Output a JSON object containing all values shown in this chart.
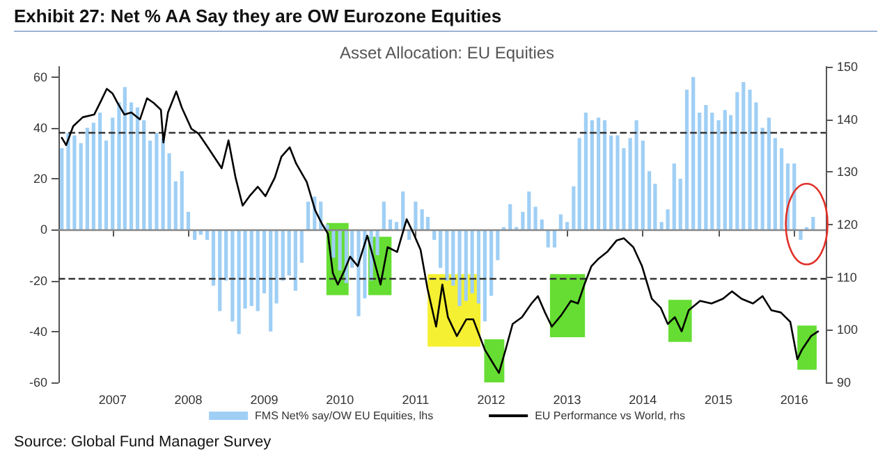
{
  "chart_data": {
    "type": "bar",
    "title": "Exhibit 27: Net % AA Say they are OW Eurozone Equities",
    "subtitle": "Asset Allocation: EU Equities",
    "annotations": [
      "Source: Global Fund Manager Survey"
    ],
    "series": [
      {
        "name": "FMS Net% say/OW EU Equities, lhs",
        "color": "#9fcff5",
        "x": [
          "2006-05",
          "2006-06",
          "2006-07",
          "2006-08",
          "2006-09",
          "2006-10",
          "2006-11",
          "2006-12",
          "2007-01",
          "2007-02",
          "2007-03",
          "2007-04",
          "2007-05",
          "2007-06",
          "2007-07",
          "2007-08",
          "2007-09",
          "2007-10",
          "2007-11",
          "2007-12",
          "2008-01",
          "2008-02",
          "2008-03",
          "2008-04",
          "2008-05",
          "2008-06",
          "2008-07",
          "2008-08",
          "2008-09",
          "2008-10",
          "2008-11",
          "2008-12",
          "2009-01",
          "2009-02",
          "2009-03",
          "2009-04",
          "2009-05",
          "2009-06",
          "2009-07",
          "2009-08",
          "2009-09",
          "2009-10",
          "2009-11",
          "2009-12",
          "2010-01",
          "2010-02",
          "2010-03",
          "2010-04",
          "2010-05",
          "2010-06",
          "2010-07",
          "2010-08",
          "2010-09",
          "2010-10",
          "2010-11",
          "2010-12",
          "2011-01",
          "2011-02",
          "2011-03",
          "2011-04",
          "2011-05",
          "2011-06",
          "2011-07",
          "2011-08",
          "2011-09",
          "2011-10",
          "2011-11",
          "2011-12",
          "2012-01",
          "2012-02",
          "2012-03",
          "2012-04",
          "2012-05",
          "2012-06",
          "2012-07",
          "2012-08",
          "2012-09",
          "2012-10",
          "2012-11",
          "2012-12",
          "2013-01",
          "2013-02",
          "2013-03",
          "2013-04",
          "2013-05",
          "2013-06",
          "2013-07",
          "2013-08",
          "2013-09",
          "2013-10",
          "2013-11",
          "2013-12",
          "2014-01",
          "2014-02",
          "2014-03",
          "2014-04",
          "2014-05",
          "2014-06",
          "2014-07",
          "2014-08",
          "2014-09",
          "2014-10",
          "2014-11",
          "2014-12",
          "2015-01",
          "2015-02",
          "2015-03",
          "2015-04",
          "2015-05",
          "2015-06",
          "2015-07",
          "2015-08",
          "2015-09",
          "2015-10",
          "2015-11",
          "2015-12",
          "2016-01",
          "2016-02",
          "2016-03",
          "2016-04"
        ],
        "values": [
          32,
          38,
          37,
          34,
          40,
          42,
          46,
          35,
          44,
          50,
          56,
          50,
          48,
          43,
          35,
          38,
          36,
          30,
          19,
          23,
          7,
          -4,
          -2,
          -4,
          -22,
          -32,
          -20,
          -36,
          -41,
          -31,
          -30,
          -32,
          -25,
          -40,
          -29,
          -20,
          -18,
          -24,
          -13,
          11,
          13,
          11,
          2,
          -11,
          -16,
          -21,
          -15,
          -34,
          -27,
          -20,
          -10,
          11,
          4,
          3,
          15,
          -4,
          11,
          8,
          5,
          -4,
          -15,
          -20,
          -22,
          -30,
          -28,
          -25,
          -29,
          -36,
          -26,
          -12,
          1,
          10,
          1,
          7,
          15,
          9,
          4,
          -7,
          -7,
          6,
          3,
          17,
          36,
          46,
          43,
          44,
          43,
          37,
          37,
          32,
          36,
          43,
          35,
          23,
          18,
          3,
          8,
          26,
          20,
          55,
          60,
          46,
          49,
          46,
          43,
          47,
          45,
          54,
          58,
          55,
          50,
          40,
          44,
          36,
          32,
          26,
          26,
          -4,
          1,
          5
        ]
      },
      {
        "name": "EU Performance vs World, rhs",
        "type": "line",
        "axis": "y2",
        "color": "#000000",
        "marker": "none",
        "line_style": "solid",
        "x": [
          "2006-05-01",
          "2006-05-22",
          "2006-06-25",
          "2006-08-10",
          "2006-10-04",
          "2006-11-06",
          "2006-12-04",
          "2007-01-01",
          "2007-01-25",
          "2007-02-27",
          "2007-04-01",
          "2007-05-13",
          "2007-06-16",
          "2007-07-19",
          "2007-08-22",
          "2007-09-03",
          "2007-09-25",
          "2007-11-04",
          "2007-12-01",
          "2008-01-16",
          "2008-02-19",
          "2008-04-04",
          "2008-06-10",
          "2008-07-13",
          "2008-08-16",
          "2008-09-19",
          "2008-10-22",
          "2008-12-01",
          "2009-01-07",
          "2009-02-21",
          "2009-03-25",
          "2009-05-04",
          "2009-06-04",
          "2009-07-25",
          "2009-09-04",
          "2009-10-07",
          "2009-11-04",
          "2009-11-28",
          "2009-12-22",
          "2010-01-22",
          "2010-02-19",
          "2010-03-28",
          "2010-05-13",
          "2010-06-16",
          "2010-07-16",
          "2010-08-19",
          "2010-10-04",
          "2010-11-19",
          "2010-12-22",
          "2011-01-25",
          "2011-02-28",
          "2011-04-10",
          "2011-05-10",
          "2011-06-06",
          "2011-07-19",
          "2011-09-03",
          "2011-10-06",
          "2011-10-28",
          "2011-12-01",
          "2012-01-04",
          "2012-02-07",
          "2012-03-10",
          "2012-04-13",
          "2012-05-28",
          "2012-07-13",
          "2012-08-13",
          "2012-09-16",
          "2012-10-19",
          "2012-12-04",
          "2013-01-19",
          "2013-02-22",
          "2013-03-25",
          "2013-04-28",
          "2013-06-01",
          "2013-07-13",
          "2013-08-28",
          "2013-10-01",
          "2013-11-16",
          "2013-12-28",
          "2014-02-13",
          "2014-03-28",
          "2014-05-01",
          "2014-06-04",
          "2014-07-07",
          "2014-08-10",
          "2014-10-04",
          "2014-11-28",
          "2015-01-22",
          "2015-03-07",
          "2015-04-22",
          "2015-06-16",
          "2015-08-01",
          "2015-09-13",
          "2015-10-28",
          "2015-12-13",
          "2016-01-16",
          "2016-02-07",
          "2016-03-22",
          "2016-04-25"
        ],
        "values": [
          136.5,
          135.1,
          138.7,
          140.4,
          140.9,
          143.5,
          145.8,
          144.9,
          143.1,
          140.9,
          141.3,
          140,
          144,
          143.1,
          141.8,
          135.6,
          141.3,
          145.3,
          142.2,
          138.2,
          137.3,
          134.7,
          130.7,
          136,
          128.9,
          123.6,
          125.4,
          127.2,
          125.4,
          128.9,
          132.9,
          134.7,
          131.6,
          128.1,
          122.7,
          120.1,
          118.3,
          110.8,
          108.6,
          111.2,
          113.9,
          112.1,
          117.9,
          113,
          108.6,
          115.7,
          114.8,
          121,
          118.3,
          115.2,
          107.7,
          100.6,
          108.6,
          102.4,
          98.8,
          102,
          102,
          99.7,
          96.2,
          94,
          91.8,
          96.2,
          101.1,
          102.4,
          105,
          106.4,
          103.3,
          100.6,
          102.8,
          105.5,
          105,
          108.6,
          112.1,
          113.5,
          114.8,
          117,
          117.4,
          115.7,
          112.1,
          105.9,
          104.2,
          101.1,
          102.4,
          99.7,
          103.7,
          105.5,
          105,
          105.9,
          107.3,
          105.9,
          105,
          106.4,
          103.7,
          103.3,
          101.5,
          94.4,
          96.2,
          98.8,
          99.7
        ]
      }
    ],
    "xlim": [
      "2006-04-15",
      "2016-06-01"
    ],
    "xticks": [
      {
        "value": "2007-01-01",
        "label": "2007"
      },
      {
        "value": "2008-01-01",
        "label": "2008"
      },
      {
        "value": "2009-01-01",
        "label": "2009"
      },
      {
        "value": "2010-01-01",
        "label": "2010"
      },
      {
        "value": "2011-01-01",
        "label": "2011"
      },
      {
        "value": "2012-01-01",
        "label": "2012"
      },
      {
        "value": "2013-01-01",
        "label": "2013"
      },
      {
        "value": "2014-01-01",
        "label": "2014"
      },
      {
        "value": "2015-01-01",
        "label": "2015"
      },
      {
        "value": "2016-01-01",
        "label": "2016"
      }
    ],
    "ylim": [
      -60,
      64
    ],
    "yticks": [
      -60,
      -40,
      -20,
      0,
      20,
      40,
      60
    ],
    "y2lim": [
      90,
      150
    ],
    "y2ticks": [
      90,
      100,
      110,
      120,
      130,
      140,
      150
    ],
    "ref_lines": [
      {
        "axis": "y",
        "value": 38,
        "line_style": "dashed",
        "color": "#333333"
      },
      {
        "axis": "y",
        "value": -19,
        "line_style": "dashed",
        "color": "#333333"
      },
      {
        "axis": "y",
        "value": 0,
        "line_style": "solid",
        "color": "#888888"
      }
    ],
    "bands": [
      {
        "axis": "x",
        "from": "2009-10-28",
        "to": "2010-02-12",
        "color": "#66dd33"
      },
      {
        "axis": "x",
        "from": "2010-05-18",
        "to": "2010-09-07",
        "color": "#66dd33"
      },
      {
        "axis": "x",
        "from": "2011-02-28",
        "to": "2011-11-10",
        "color": "#f5f032"
      },
      {
        "axis": "x",
        "from": "2011-11-28",
        "to": "2012-03-04",
        "color": "#66dd33"
      },
      {
        "axis": "x",
        "from": "2012-10-10",
        "to": "2013-03-28",
        "color": "#66dd33"
      },
      {
        "axis": "x",
        "from": "2014-05-04",
        "to": "2014-08-25",
        "color": "#66dd33"
      },
      {
        "axis": "x",
        "from": "2016-01-16",
        "to": "2016-04-18",
        "color": "#66dd33"
      }
    ],
    "legend": "bottom",
    "grid": false
  }
}
